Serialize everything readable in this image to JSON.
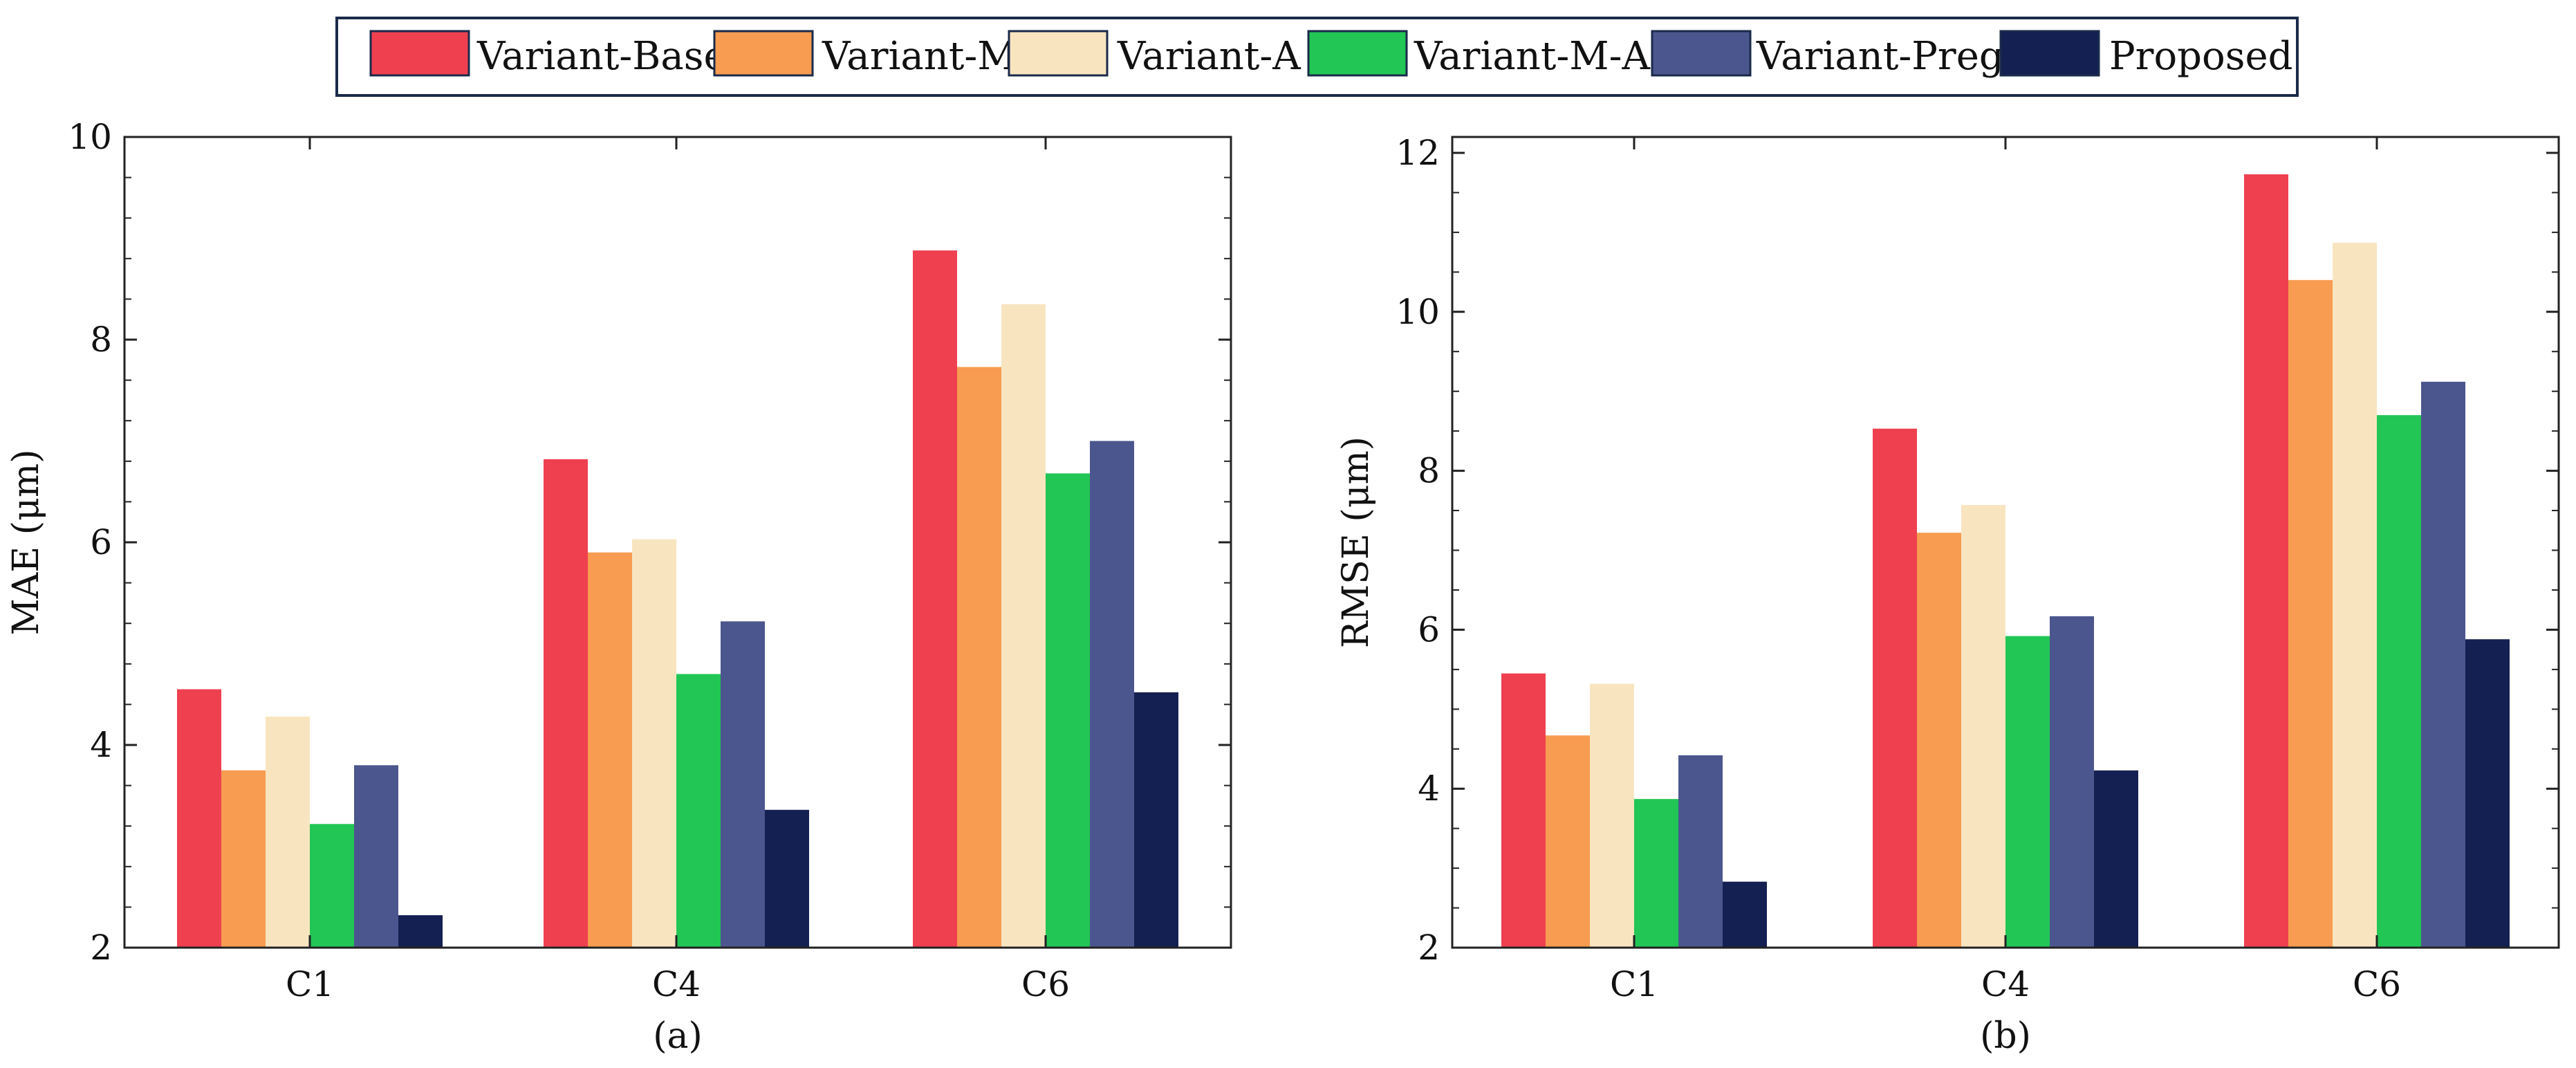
{
  "legend": [
    {
      "name": "Variant-Base",
      "color": "#ef4050"
    },
    {
      "name": "Variant-M",
      "color": "#f79c50"
    },
    {
      "name": "Variant-A",
      "color": "#f8e5c0"
    },
    {
      "name": "Variant-M-A",
      "color": "#22c655"
    },
    {
      "name": "Variant-Preg",
      "color": "#4c568e"
    },
    {
      "name": "Proposed",
      "color": "#141f52"
    }
  ],
  "chart_data": [
    {
      "type": "bar",
      "caption": "(a)",
      "categories": [
        "C1",
        "C4",
        "C6"
      ],
      "xlabel": "",
      "ylabel": "MAE (μm)",
      "ylim": [
        2,
        10
      ],
      "yticks": [
        2,
        4,
        6,
        8,
        10
      ],
      "series": [
        {
          "name": "Variant-Base",
          "values": [
            4.55,
            6.82,
            8.88
          ]
        },
        {
          "name": "Variant-M",
          "values": [
            3.75,
            5.9,
            7.73
          ]
        },
        {
          "name": "Variant-A",
          "values": [
            4.28,
            6.03,
            8.35
          ]
        },
        {
          "name": "Variant-M-A",
          "values": [
            3.22,
            4.7,
            6.68
          ]
        },
        {
          "name": "Variant-Preg",
          "values": [
            3.8,
            5.22,
            7.0
          ]
        },
        {
          "name": "Proposed",
          "values": [
            2.32,
            3.36,
            4.52
          ]
        }
      ]
    },
    {
      "type": "bar",
      "caption": "(b)",
      "categories": [
        "C1",
        "C4",
        "C6"
      ],
      "xlabel": "",
      "ylabel": "RMSE (μm)",
      "ylim": [
        2,
        12.2
      ],
      "yticks": [
        2,
        4,
        6,
        8,
        10,
        12
      ],
      "series": [
        {
          "name": "Variant-Base",
          "values": [
            5.45,
            8.53,
            11.73
          ]
        },
        {
          "name": "Variant-M",
          "values": [
            4.67,
            7.22,
            10.4
          ]
        },
        {
          "name": "Variant-A",
          "values": [
            5.32,
            7.57,
            10.87
          ]
        },
        {
          "name": "Variant-M-A",
          "values": [
            3.87,
            5.92,
            8.7
          ]
        },
        {
          "name": "Variant-Preg",
          "values": [
            4.42,
            6.17,
            9.12
          ]
        },
        {
          "name": "Proposed",
          "values": [
            2.83,
            4.23,
            5.88
          ]
        }
      ]
    }
  ]
}
